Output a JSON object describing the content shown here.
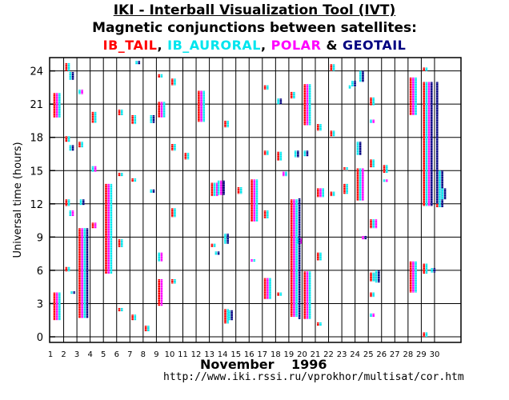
{
  "title": "IKI - Interball Visualization Tool (IVT)",
  "subtitle": "Magnetic conjunctions between satellites:",
  "legend": [
    {
      "name": "IB_TAIL",
      "color": "#ff0000"
    },
    {
      "name": "IB_AURORAL",
      "color": "#00e5ee"
    },
    {
      "name": "POLAR",
      "color": "#ff00ff"
    },
    {
      "name": "GEOTAIL",
      "color": "#000080"
    }
  ],
  "legend_sep": [
    ", ",
    ", ",
    " & "
  ],
  "footer": {
    "month": "November",
    "year": "1996",
    "url": "http://www.iki.rssi.ru/vprokhor/multisat/cor.htm"
  },
  "chart_data": {
    "type": "scatter",
    "ylabel": "Universal time (hours)",
    "xlabel": "November 1996",
    "xlim": [
      1,
      31
    ],
    "ylim": [
      0,
      25
    ],
    "xticks": [
      1,
      2,
      3,
      4,
      5,
      6,
      7,
      8,
      9,
      10,
      11,
      12,
      13,
      14,
      15,
      16,
      17,
      18,
      19,
      20,
      21,
      22,
      23,
      24,
      25,
      26,
      27,
      28,
      29,
      30
    ],
    "yticks": [
      0,
      3,
      6,
      9,
      12,
      15,
      18,
      21,
      24
    ],
    "grid": true,
    "series_order": [
      "IB_TAIL",
      "IB_AURORAL",
      "POLAR",
      "GEOTAIL"
    ],
    "conjunctions": [
      {
        "day": 1.1,
        "start": 1.5,
        "end": 4.0,
        "sats": [
          "IB_TAIL",
          "POLAR",
          "IB_AURORAL"
        ]
      },
      {
        "day": 1.1,
        "start": 19.8,
        "end": 22.0,
        "sats": [
          "IB_TAIL",
          "POLAR",
          "IB_AURORAL"
        ]
      },
      {
        "day": 2.0,
        "start": 24.0,
        "end": 24.7,
        "sats": [
          "IB_TAIL",
          "IB_AURORAL"
        ]
      },
      {
        "day": 2.0,
        "start": 17.6,
        "end": 18.1,
        "sats": [
          "IB_TAIL",
          "IB_AURORAL"
        ]
      },
      {
        "day": 2.0,
        "start": 11.8,
        "end": 12.4,
        "sats": [
          "IB_TAIL",
          "IB_AURORAL"
        ]
      },
      {
        "day": 2.0,
        "start": 5.9,
        "end": 6.3,
        "sats": [
          "IB_TAIL",
          "IB_AURORAL"
        ]
      },
      {
        "day": 2.3,
        "start": 23.2,
        "end": 23.9,
        "sats": [
          "IB_AURORAL",
          "GEOTAIL"
        ]
      },
      {
        "day": 2.3,
        "start": 16.8,
        "end": 17.3,
        "sats": [
          "IB_AURORAL",
          "GEOTAIL"
        ]
      },
      {
        "day": 2.3,
        "start": 10.9,
        "end": 11.4,
        "sats": [
          "IB_AURORAL",
          "POLAR"
        ]
      },
      {
        "day": 2.4,
        "start": 3.9,
        "end": 4.1,
        "sats": [
          "IB_AURORAL",
          "GEOTAIL"
        ]
      },
      {
        "day": 3.0,
        "start": 1.7,
        "end": 9.8,
        "sats": [
          "IB_TAIL",
          "POLAR",
          "IB_AURORAL",
          "GEOTAIL"
        ]
      },
      {
        "day": 3.0,
        "start": 17.1,
        "end": 17.6,
        "sats": [
          "IB_TAIL",
          "IB_AURORAL"
        ]
      },
      {
        "day": 3.0,
        "start": 21.9,
        "end": 22.3,
        "sats": [
          "IB_AURORAL",
          "POLAR"
        ]
      },
      {
        "day": 3.1,
        "start": 11.9,
        "end": 12.4,
        "sats": [
          "IB_AURORAL",
          "GEOTAIL"
        ]
      },
      {
        "day": 4.0,
        "start": 9.8,
        "end": 10.3,
        "sats": [
          "IB_TAIL",
          "POLAR"
        ]
      },
      {
        "day": 4.0,
        "start": 14.9,
        "end": 15.4,
        "sats": [
          "IB_AURORAL",
          "POLAR"
        ]
      },
      {
        "day": 4.0,
        "start": 19.3,
        "end": 20.3,
        "sats": [
          "IB_TAIL",
          "IB_AURORAL"
        ]
      },
      {
        "day": 5.0,
        "start": 5.7,
        "end": 13.8,
        "sats": [
          "IB_TAIL",
          "POLAR",
          "IB_AURORAL"
        ]
      },
      {
        "day": 6.0,
        "start": 20.0,
        "end": 20.5,
        "sats": [
          "IB_TAIL",
          "IB_AURORAL"
        ]
      },
      {
        "day": 6.0,
        "start": 14.5,
        "end": 14.8,
        "sats": [
          "IB_TAIL",
          "IB_AURORAL"
        ]
      },
      {
        "day": 6.0,
        "start": 8.1,
        "end": 8.8,
        "sats": [
          "IB_TAIL",
          "IB_AURORAL"
        ]
      },
      {
        "day": 6.0,
        "start": 2.3,
        "end": 2.6,
        "sats": [
          "IB_TAIL",
          "IB_AURORAL"
        ]
      },
      {
        "day": 7.0,
        "start": 19.2,
        "end": 20.0,
        "sats": [
          "IB_TAIL",
          "IB_AURORAL"
        ]
      },
      {
        "day": 7.0,
        "start": 14.0,
        "end": 14.3,
        "sats": [
          "IB_TAIL",
          "IB_AURORAL"
        ]
      },
      {
        "day": 7.0,
        "start": 1.5,
        "end": 2.0,
        "sats": [
          "IB_TAIL",
          "IB_AURORAL"
        ]
      },
      {
        "day": 7.3,
        "start": 24.6,
        "end": 24.9,
        "sats": [
          "IB_AURORAL",
          "GEOTAIL"
        ]
      },
      {
        "day": 8.0,
        "start": 0.5,
        "end": 1.0,
        "sats": [
          "IB_TAIL",
          "IB_AURORAL"
        ]
      },
      {
        "day": 8.4,
        "start": 19.3,
        "end": 20.0,
        "sats": [
          "IB_AURORAL",
          "GEOTAIL"
        ]
      },
      {
        "day": 8.4,
        "start": 13.0,
        "end": 13.3,
        "sats": [
          "IB_AURORAL",
          "GEOTAIL"
        ]
      },
      {
        "day": 9.0,
        "start": 2.8,
        "end": 5.2,
        "sats": [
          "IB_TAIL",
          "POLAR"
        ]
      },
      {
        "day": 9.0,
        "start": 6.8,
        "end": 7.6,
        "sats": [
          "IB_AURORAL",
          "POLAR"
        ]
      },
      {
        "day": 9.0,
        "start": 19.8,
        "end": 21.2,
        "sats": [
          "IB_TAIL",
          "POLAR",
          "IB_AURORAL"
        ]
      },
      {
        "day": 9.0,
        "start": 23.4,
        "end": 23.7,
        "sats": [
          "IB_TAIL",
          "IB_AURORAL"
        ]
      },
      {
        "day": 10.0,
        "start": 4.8,
        "end": 5.2,
        "sats": [
          "IB_TAIL",
          "IB_AURORAL"
        ]
      },
      {
        "day": 10.0,
        "start": 10.8,
        "end": 11.6,
        "sats": [
          "IB_TAIL",
          "IB_AURORAL"
        ]
      },
      {
        "day": 10.0,
        "start": 16.8,
        "end": 17.4,
        "sats": [
          "IB_TAIL",
          "IB_AURORAL"
        ]
      },
      {
        "day": 10.0,
        "start": 22.7,
        "end": 23.3,
        "sats": [
          "IB_TAIL",
          "IB_AURORAL"
        ]
      },
      {
        "day": 11.0,
        "start": 16.0,
        "end": 16.6,
        "sats": [
          "IB_TAIL",
          "IB_AURORAL"
        ]
      },
      {
        "day": 12.0,
        "start": 19.4,
        "end": 22.2,
        "sats": [
          "IB_TAIL",
          "POLAR",
          "IB_AURORAL"
        ]
      },
      {
        "day": 13.0,
        "start": 12.7,
        "end": 13.9,
        "sats": [
          "IB_TAIL",
          "IB_AURORAL",
          "POLAR"
        ]
      },
      {
        "day": 13.0,
        "start": 8.1,
        "end": 8.4,
        "sats": [
          "IB_TAIL",
          "IB_AURORAL"
        ]
      },
      {
        "day": 13.3,
        "start": 7.4,
        "end": 7.7,
        "sats": [
          "IB_AURORAL",
          "GEOTAIL"
        ]
      },
      {
        "day": 13.5,
        "start": 12.8,
        "end": 14.1,
        "sats": [
          "IB_AURORAL",
          "POLAR",
          "GEOTAIL"
        ]
      },
      {
        "day": 14.0,
        "start": 1.2,
        "end": 2.5,
        "sats": [
          "IB_TAIL",
          "IB_AURORAL"
        ]
      },
      {
        "day": 14.0,
        "start": 8.4,
        "end": 9.3,
        "sats": [
          "IB_AURORAL",
          "GEOTAIL"
        ]
      },
      {
        "day": 14.0,
        "start": 18.9,
        "end": 19.5,
        "sats": [
          "IB_TAIL",
          "IB_AURORAL"
        ]
      },
      {
        "day": 14.3,
        "start": 1.5,
        "end": 2.4,
        "sats": [
          "IB_AURORAL",
          "GEOTAIL"
        ]
      },
      {
        "day": 15.0,
        "start": 12.9,
        "end": 13.5,
        "sats": [
          "IB_TAIL",
          "IB_AURORAL"
        ]
      },
      {
        "day": 16.0,
        "start": 10.4,
        "end": 14.2,
        "sats": [
          "IB_TAIL",
          "POLAR",
          "IB_AURORAL"
        ]
      },
      {
        "day": 16.0,
        "start": 6.8,
        "end": 7.0,
        "sats": [
          "POLAR",
          "IB_AURORAL"
        ]
      },
      {
        "day": 17.0,
        "start": 3.4,
        "end": 5.3,
        "sats": [
          "IB_TAIL",
          "POLAR",
          "IB_AURORAL"
        ]
      },
      {
        "day": 17.0,
        "start": 10.7,
        "end": 11.4,
        "sats": [
          "IB_TAIL",
          "IB_AURORAL"
        ]
      },
      {
        "day": 17.0,
        "start": 16.4,
        "end": 16.8,
        "sats": [
          "IB_TAIL",
          "IB_AURORAL"
        ]
      },
      {
        "day": 17.0,
        "start": 22.3,
        "end": 22.7,
        "sats": [
          "IB_TAIL",
          "IB_AURORAL"
        ]
      },
      {
        "day": 18.0,
        "start": 3.7,
        "end": 4.0,
        "sats": [
          "IB_TAIL",
          "IB_AURORAL"
        ]
      },
      {
        "day": 18.0,
        "start": 15.9,
        "end": 16.7,
        "sats": [
          "IB_TAIL",
          "IB_AURORAL"
        ]
      },
      {
        "day": 18.0,
        "start": 21.0,
        "end": 21.5,
        "sats": [
          "IB_AURORAL",
          "GEOTAIL"
        ]
      },
      {
        "day": 18.4,
        "start": 14.5,
        "end": 14.9,
        "sats": [
          "POLAR",
          "IB_AURORAL"
        ]
      },
      {
        "day": 19.0,
        "start": 1.8,
        "end": 12.4,
        "sats": [
          "IB_TAIL",
          "POLAR",
          "IB_AURORAL"
        ]
      },
      {
        "day": 19.0,
        "start": 21.5,
        "end": 22.1,
        "sats": [
          "IB_TAIL",
          "IB_AURORAL"
        ]
      },
      {
        "day": 19.3,
        "start": 16.2,
        "end": 16.8,
        "sats": [
          "IB_AURORAL",
          "GEOTAIL"
        ]
      },
      {
        "day": 19.5,
        "start": 8.4,
        "end": 8.9,
        "sats": [
          "IB_AURORAL",
          "POLAR"
        ]
      },
      {
        "day": 19.6,
        "start": 1.6,
        "end": 12.5,
        "sats": [
          "GEOTAIL"
        ]
      },
      {
        "day": 20.0,
        "start": 1.6,
        "end": 5.9,
        "sats": [
          "IB_TAIL",
          "POLAR",
          "IB_AURORAL"
        ]
      },
      {
        "day": 20.0,
        "start": 19.1,
        "end": 22.8,
        "sats": [
          "IB_TAIL",
          "POLAR",
          "IB_AURORAL"
        ]
      },
      {
        "day": 20.0,
        "start": 16.3,
        "end": 16.8,
        "sats": [
          "IB_AURORAL",
          "GEOTAIL"
        ]
      },
      {
        "day": 21.0,
        "start": 1.0,
        "end": 1.3,
        "sats": [
          "IB_TAIL",
          "IB_AURORAL"
        ]
      },
      {
        "day": 21.0,
        "start": 6.9,
        "end": 7.6,
        "sats": [
          "IB_TAIL",
          "IB_AURORAL"
        ]
      },
      {
        "day": 21.0,
        "start": 12.6,
        "end": 13.4,
        "sats": [
          "IB_TAIL",
          "POLAR",
          "IB_AURORAL"
        ]
      },
      {
        "day": 21.0,
        "start": 18.6,
        "end": 19.2,
        "sats": [
          "IB_TAIL",
          "IB_AURORAL"
        ]
      },
      {
        "day": 22.0,
        "start": 12.7,
        "end": 13.1,
        "sats": [
          "IB_TAIL",
          "IB_AURORAL"
        ]
      },
      {
        "day": 22.0,
        "start": 18.1,
        "end": 18.6,
        "sats": [
          "IB_TAIL",
          "IB_AURORAL"
        ]
      },
      {
        "day": 22.0,
        "start": 24.0,
        "end": 24.6,
        "sats": [
          "IB_TAIL",
          "IB_AURORAL"
        ]
      },
      {
        "day": 23.0,
        "start": 12.9,
        "end": 13.8,
        "sats": [
          "IB_TAIL",
          "IB_AURORAL"
        ]
      },
      {
        "day": 23.0,
        "start": 15.1,
        "end": 15.3,
        "sats": [
          "IB_TAIL",
          "IB_AURORAL"
        ]
      },
      {
        "day": 23.4,
        "start": 22.4,
        "end": 22.7,
        "sats": [
          "IB_AURORAL"
        ]
      },
      {
        "day": 23.6,
        "start": 22.6,
        "end": 23.1,
        "sats": [
          "IB_AURORAL",
          "GEOTAIL"
        ]
      },
      {
        "day": 24.0,
        "start": 12.3,
        "end": 15.2,
        "sats": [
          "IB_TAIL",
          "IB_AURORAL",
          "POLAR"
        ]
      },
      {
        "day": 24.0,
        "start": 16.4,
        "end": 17.6,
        "sats": [
          "IB_AURORAL",
          "GEOTAIL"
        ]
      },
      {
        "day": 24.2,
        "start": 23.0,
        "end": 24.0,
        "sats": [
          "IB_AURORAL",
          "GEOTAIL"
        ]
      },
      {
        "day": 24.4,
        "start": 8.8,
        "end": 9.1,
        "sats": [
          "POLAR",
          "GEOTAIL"
        ]
      },
      {
        "day": 25.0,
        "start": 1.8,
        "end": 2.1,
        "sats": [
          "IB_AURORAL",
          "POLAR"
        ]
      },
      {
        "day": 25.0,
        "start": 3.6,
        "end": 4.0,
        "sats": [
          "IB_TAIL",
          "IB_AURORAL"
        ]
      },
      {
        "day": 25.0,
        "start": 5.0,
        "end": 5.8,
        "sats": [
          "IB_TAIL",
          "IB_AURORAL",
          "GEOTAIL"
        ]
      },
      {
        "day": 25.0,
        "start": 9.8,
        "end": 10.6,
        "sats": [
          "IB_TAIL",
          "IB_AURORAL",
          "POLAR"
        ]
      },
      {
        "day": 25.0,
        "start": 15.3,
        "end": 16.0,
        "sats": [
          "IB_TAIL",
          "IB_AURORAL"
        ]
      },
      {
        "day": 25.0,
        "start": 19.3,
        "end": 19.6,
        "sats": [
          "IB_AURORAL",
          "POLAR"
        ]
      },
      {
        "day": 25.0,
        "start": 20.9,
        "end": 21.6,
        "sats": [
          "IB_TAIL",
          "IB_AURORAL"
        ]
      },
      {
        "day": 25.4,
        "start": 4.9,
        "end": 6.0,
        "sats": [
          "IB_AURORAL",
          "GEOTAIL"
        ]
      },
      {
        "day": 26.0,
        "start": 14.8,
        "end": 15.5,
        "sats": [
          "IB_TAIL",
          "IB_AURORAL"
        ]
      },
      {
        "day": 26.0,
        "start": 14.0,
        "end": 14.2,
        "sats": [
          "IB_AURORAL",
          "POLAR"
        ]
      },
      {
        "day": 28.0,
        "start": 4.0,
        "end": 6.8,
        "sats": [
          "IB_TAIL",
          "POLAR",
          "IB_AURORAL"
        ]
      },
      {
        "day": 28.0,
        "start": 20.0,
        "end": 23.4,
        "sats": [
          "IB_TAIL",
          "POLAR",
          "IB_AURORAL"
        ]
      },
      {
        "day": 29.0,
        "start": 0.0,
        "end": 0.4,
        "sats": [
          "IB_TAIL",
          "IB_AURORAL"
        ]
      },
      {
        "day": 29.0,
        "start": 5.7,
        "end": 6.6,
        "sats": [
          "IB_TAIL",
          "IB_AURORAL"
        ]
      },
      {
        "day": 29.0,
        "start": 11.8,
        "end": 23.0,
        "sats": [
          "IB_TAIL",
          "IB_AURORAL",
          "POLAR",
          "GEOTAIL"
        ]
      },
      {
        "day": 29.0,
        "start": 24.0,
        "end": 24.3,
        "sats": [
          "IB_TAIL",
          "IB_AURORAL"
        ]
      },
      {
        "day": 29.6,
        "start": 5.8,
        "end": 6.2,
        "sats": [
          "IB_AURORAL",
          "GEOTAIL"
        ]
      },
      {
        "day": 30.0,
        "start": 11.7,
        "end": 15.0,
        "sats": [
          "IB_TAIL",
          "IB_AURORAL",
          "GEOTAIL"
        ]
      },
      {
        "day": 30.0,
        "start": 20.0,
        "end": 23.0,
        "sats": [
          "GEOTAIL"
        ]
      },
      {
        "day": 30.0,
        "start": 12.0,
        "end": 23.0,
        "sats": [
          "GEOTAIL"
        ]
      },
      {
        "day": 30.4,
        "start": 12.4,
        "end": 13.4,
        "sats": [
          "IB_AURORAL",
          "GEOTAIL"
        ]
      }
    ]
  }
}
